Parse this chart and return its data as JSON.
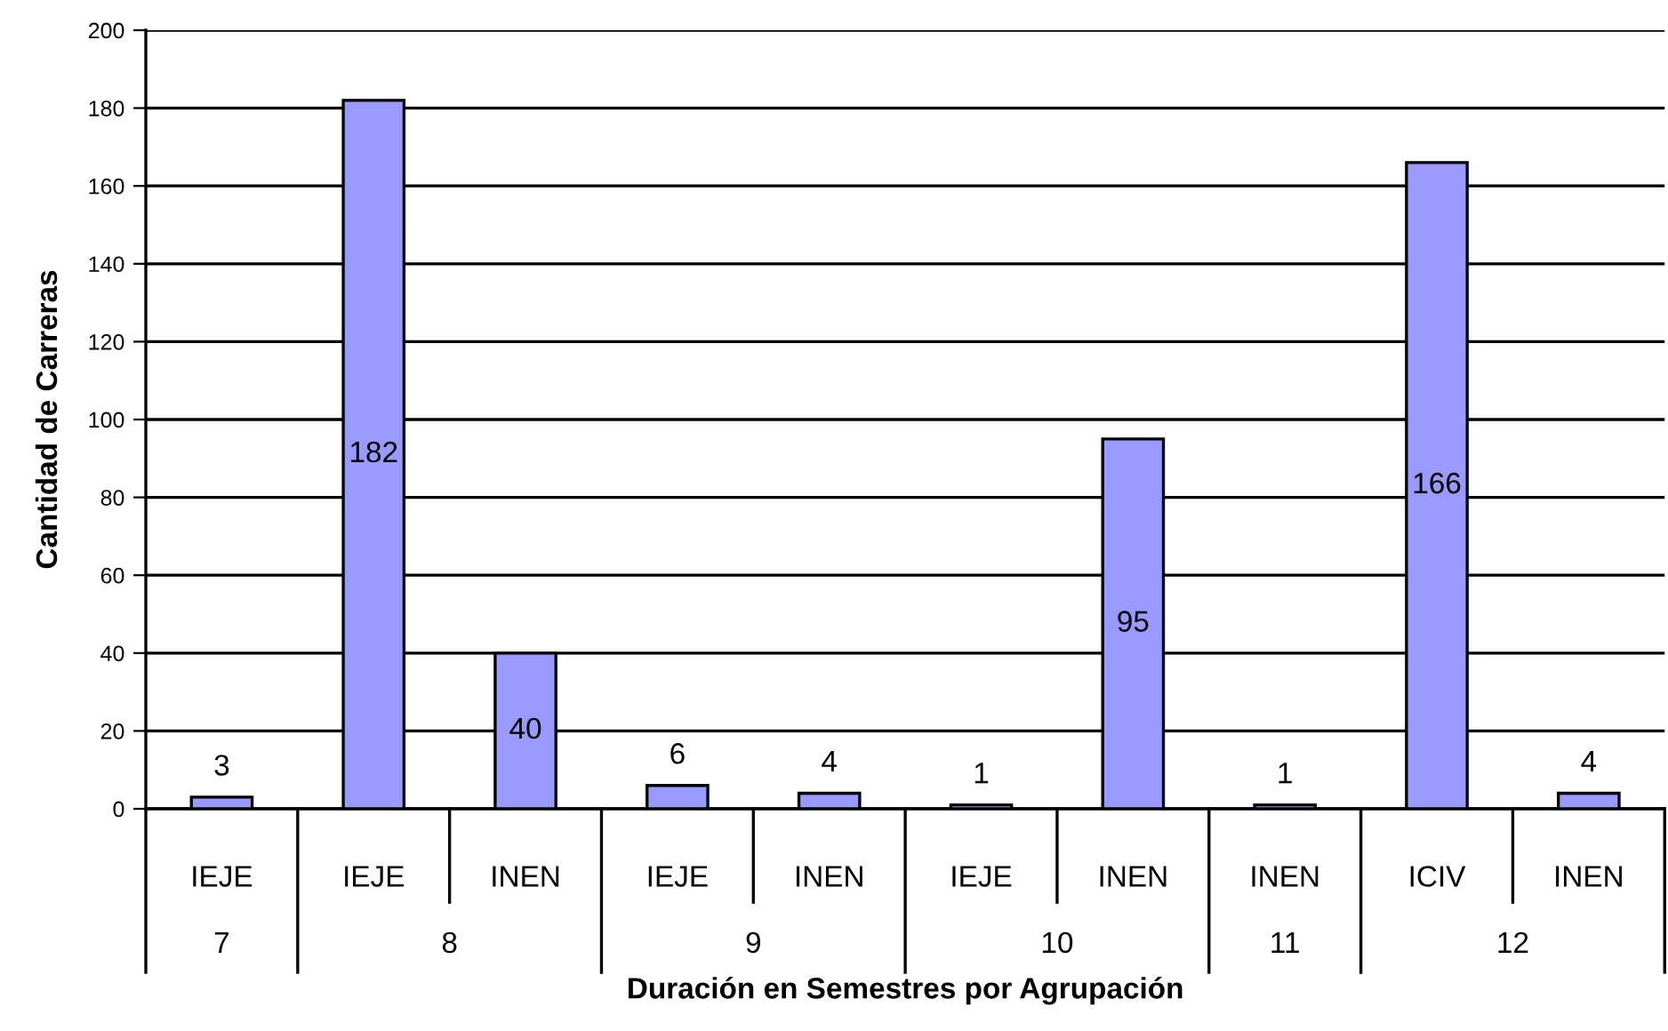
{
  "chart_data": {
    "type": "bar",
    "categories": [
      "IEJE",
      "IEJE",
      "INEN",
      "IEJE",
      "INEN",
      "IEJE",
      "INEN",
      "INEN",
      "ICIV",
      "INEN"
    ],
    "values": [
      3,
      182,
      40,
      6,
      4,
      1,
      95,
      1,
      166,
      4
    ],
    "color": "#9999ff",
    "ylim": [
      0,
      200
    ],
    "yticks": [
      0,
      20,
      40,
      60,
      80,
      100,
      120,
      140,
      160,
      180,
      200
    ],
    "grid": "y",
    "data_labels": true,
    "xlabel": "Duración en Semestres por Agrupación",
    "ylabel": "Cantidad de Carreras",
    "annotations": [
      "7",
      "8",
      "9",
      "10",
      "11",
      "12"
    ]
  }
}
